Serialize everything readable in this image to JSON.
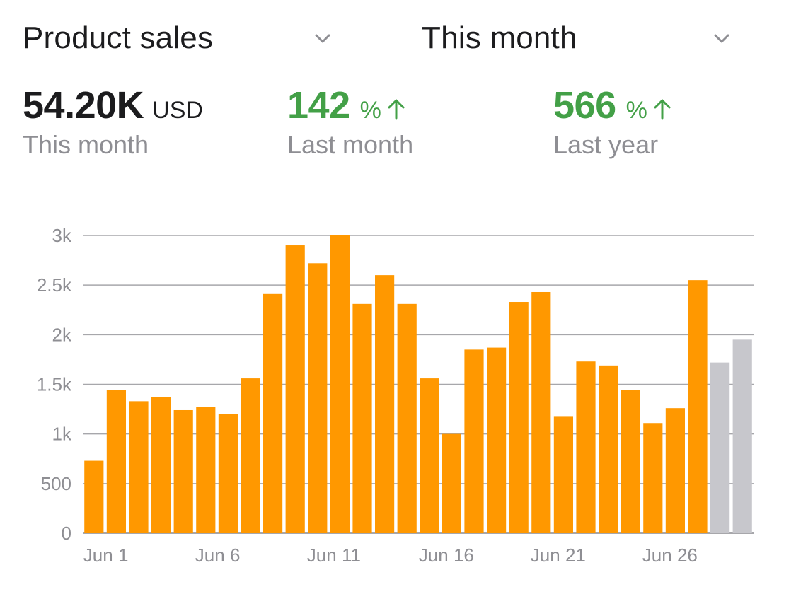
{
  "header": {
    "metric_selector": {
      "label": "Product sales",
      "icon": "chevron-down-icon"
    },
    "period_selector": {
      "label": "This month",
      "icon": "chevron-down-icon"
    }
  },
  "stats": {
    "total": {
      "value": "54.20K",
      "unit": "USD",
      "caption": "This month"
    },
    "last_month": {
      "value": "142",
      "unit": "%",
      "icon": "arrow-up-icon",
      "caption": "Last month",
      "color": "#43a047"
    },
    "last_year": {
      "value": "566",
      "unit": "%",
      "icon": "arrow-up-icon",
      "caption": "Last year",
      "color": "#43a047"
    }
  },
  "chart_data": {
    "type": "bar",
    "x": [
      "Jun 1",
      "Jun 2",
      "Jun 3",
      "Jun 4",
      "Jun 5",
      "Jun 6",
      "Jun 7",
      "Jun 8",
      "Jun 9",
      "Jun 10",
      "Jun 11",
      "Jun 12",
      "Jun 13",
      "Jun 14",
      "Jun 15",
      "Jun 16",
      "Jun 17",
      "Jun 18",
      "Jun 19",
      "Jun 20",
      "Jun 21",
      "Jun 22",
      "Jun 23",
      "Jun 24",
      "Jun 25",
      "Jun 26",
      "Jun 27",
      "Jun 28",
      "Jun 29",
      "Jun 30"
    ],
    "x_tick_labels": [
      "Jun 1",
      "Jun 6",
      "Jun 11",
      "Jun 16",
      "Jun 21",
      "Jun 26"
    ],
    "values": [
      730,
      1440,
      1330,
      1370,
      1240,
      1270,
      1200,
      1560,
      2410,
      2900,
      2720,
      3000,
      2310,
      2600,
      2310,
      1560,
      1000,
      1850,
      1870,
      2330,
      2430,
      1180,
      1730,
      1690,
      1440,
      1110,
      1260,
      2550,
      1720,
      1950
    ],
    "bar_status": [
      "actual",
      "actual",
      "actual",
      "actual",
      "actual",
      "actual",
      "actual",
      "actual",
      "actual",
      "actual",
      "actual",
      "actual",
      "actual",
      "actual",
      "actual",
      "actual",
      "actual",
      "actual",
      "actual",
      "actual",
      "actual",
      "actual",
      "actual",
      "actual",
      "actual",
      "actual",
      "actual",
      "actual",
      "upcoming",
      "upcoming"
    ],
    "colors": {
      "actual": "#ff9800",
      "upcoming": "#c7c7cc",
      "grid": "#a7a7ab",
      "axis_text": "#8e8e93"
    },
    "ylim": [
      0,
      3000
    ],
    "y_ticks": [
      0,
      500,
      1000,
      1500,
      2000,
      2500,
      3000
    ],
    "y_tick_labels": [
      "0",
      "500",
      "1k",
      "1.5k",
      "2k",
      "2.5k",
      "3k"
    ],
    "grid": true,
    "title": "",
    "xlabel": "",
    "ylabel": ""
  }
}
